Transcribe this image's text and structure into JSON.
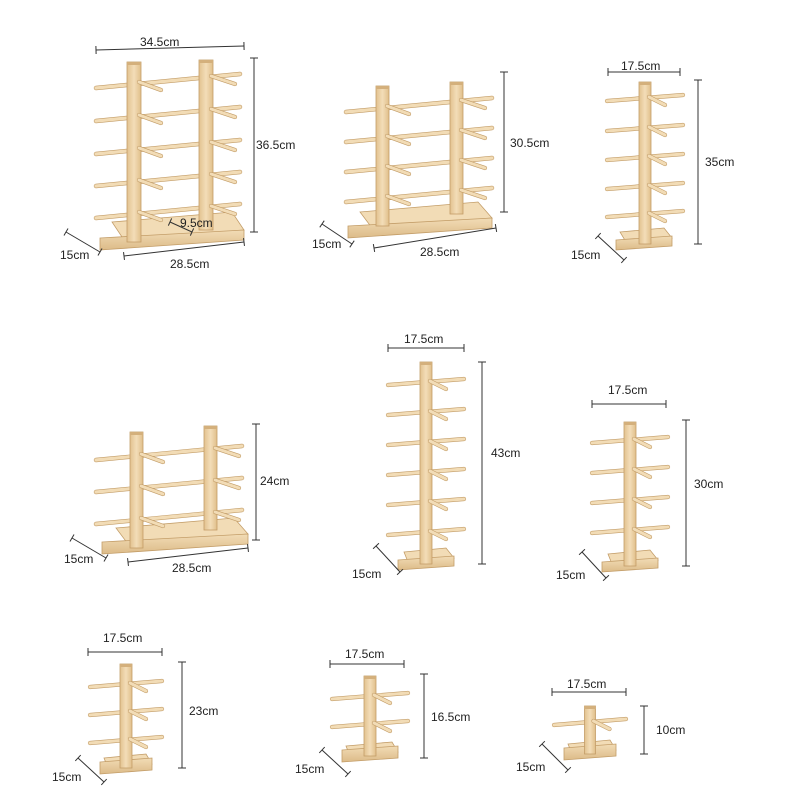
{
  "colors": {
    "wood_light": "#f2dcb6",
    "wood_mid": "#e7c99a",
    "wood_dark": "#d4b07c",
    "wood_edge": "#c39d68",
    "dimension_line": "#333333",
    "background": "#ffffff"
  },
  "products": [
    {
      "id": "double-5-tier",
      "width": "34.5cm",
      "height": "36.5cm",
      "depth": "15cm",
      "base_length": "28.5cm",
      "spacing": "9.5cm"
    },
    {
      "id": "double-4-tier",
      "height": "30.5cm",
      "depth": "15cm",
      "base_length": "28.5cm"
    },
    {
      "id": "single-5-tier",
      "width": "17.5cm",
      "height": "35cm",
      "depth": "15cm"
    },
    {
      "id": "double-3-tier",
      "height": "24cm",
      "depth": "15cm",
      "base_length": "28.5cm"
    },
    {
      "id": "single-6-tier",
      "width": "17.5cm",
      "height": "43cm",
      "depth": "15cm"
    },
    {
      "id": "single-4-tier",
      "width": "17.5cm",
      "height": "30cm",
      "depth": "15cm"
    },
    {
      "id": "single-3-tier",
      "width": "17.5cm",
      "height": "23cm",
      "depth": "15cm"
    },
    {
      "id": "single-2-tier",
      "width": "17.5cm",
      "height": "16.5cm",
      "depth": "15cm"
    },
    {
      "id": "single-1-tier",
      "width": "17.5cm",
      "height": "10cm",
      "depth": "15cm"
    }
  ]
}
